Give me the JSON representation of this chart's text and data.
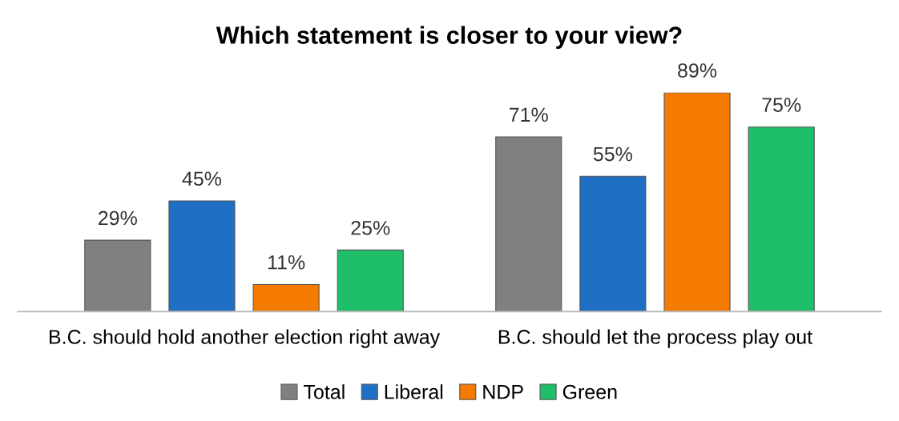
{
  "chart_data": {
    "type": "bar",
    "title": "Which statement is closer to your view?",
    "categories": [
      "B.C. should hold another election right away",
      "B.C. should let the process play out"
    ],
    "series": [
      {
        "name": "Total",
        "color": "#808080",
        "values": [
          29,
          71
        ],
        "value_labels": [
          "29%",
          "71%"
        ]
      },
      {
        "name": "Liberal",
        "color": "#1f6fc5",
        "values": [
          45,
          55
        ],
        "value_labels": [
          "45%",
          "55%"
        ]
      },
      {
        "name": "NDP",
        "color": "#f57a00",
        "values": [
          11,
          89
        ],
        "value_labels": [
          "11%",
          "89%"
        ]
      },
      {
        "name": "Green",
        "color": "#1fbf6a",
        "values": [
          25,
          75
        ],
        "value_labels": [
          "25%",
          "75%"
        ]
      }
    ],
    "legend": "bottom",
    "grid": false
  }
}
